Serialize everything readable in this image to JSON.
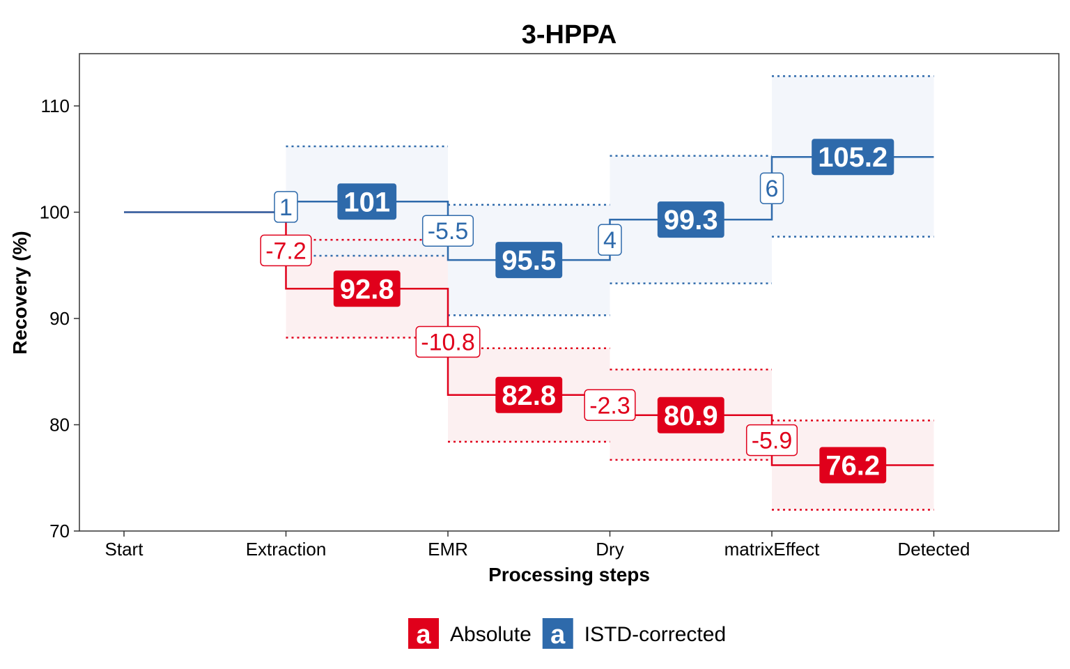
{
  "chart_data": {
    "type": "line",
    "title": "3-HPPA",
    "xlabel": "Processing steps",
    "ylabel": "Recovery (%)",
    "categories": [
      "Start",
      "Extraction",
      "EMR",
      "Dry",
      "matrixEffect",
      "Detected"
    ],
    "ylim": [
      70,
      114
    ],
    "yticks": [
      70,
      80,
      90,
      100,
      110
    ],
    "grid": false,
    "legend_position": "bottom",
    "series": [
      {
        "name": "Absolute",
        "color": "#E0001B",
        "band_color": "#FCEDEE",
        "start": 100,
        "steps": [
          {
            "step": "Extraction",
            "delta": "-7.2",
            "value": 92.8,
            "value_label": "92.8",
            "low": 88.2,
            "high": 97.4
          },
          {
            "step": "EMR",
            "delta": "-10.8",
            "value": 82.8,
            "value_label": "82.8",
            "low": 78.4,
            "high": 87.2
          },
          {
            "step": "Dry",
            "delta": "-2.3",
            "value": 80.9,
            "value_label": "80.9",
            "low": 76.7,
            "high": 85.2
          },
          {
            "step": "matrixEffect",
            "delta": "-5.9",
            "value": 76.2,
            "value_label": "76.2",
            "low": 72.0,
            "high": 80.4
          }
        ]
      },
      {
        "name": "ISTD-corrected",
        "color": "#2E6AAB",
        "band_color": "#F1F5FA",
        "start": 100,
        "steps": [
          {
            "step": "Extraction",
            "delta": "1",
            "value": 101,
            "value_label": "101",
            "low": 95.9,
            "high": 106.2
          },
          {
            "step": "EMR",
            "delta": "-5.5",
            "value": 95.5,
            "value_label": "95.5",
            "low": 90.3,
            "high": 100.7
          },
          {
            "step": "Dry",
            "delta": "4",
            "value": 99.3,
            "value_label": "99.3",
            "low": 93.3,
            "high": 105.3
          },
          {
            "step": "matrixEffect",
            "delta": "6",
            "value": 105.2,
            "value_label": "105.2",
            "low": 97.7,
            "high": 112.8
          }
        ]
      }
    ],
    "legend": [
      {
        "key": "a",
        "label": "Absolute",
        "color": "#E0001B"
      },
      {
        "key": "a",
        "label": "ISTD-corrected",
        "color": "#2E6AAB"
      }
    ]
  }
}
